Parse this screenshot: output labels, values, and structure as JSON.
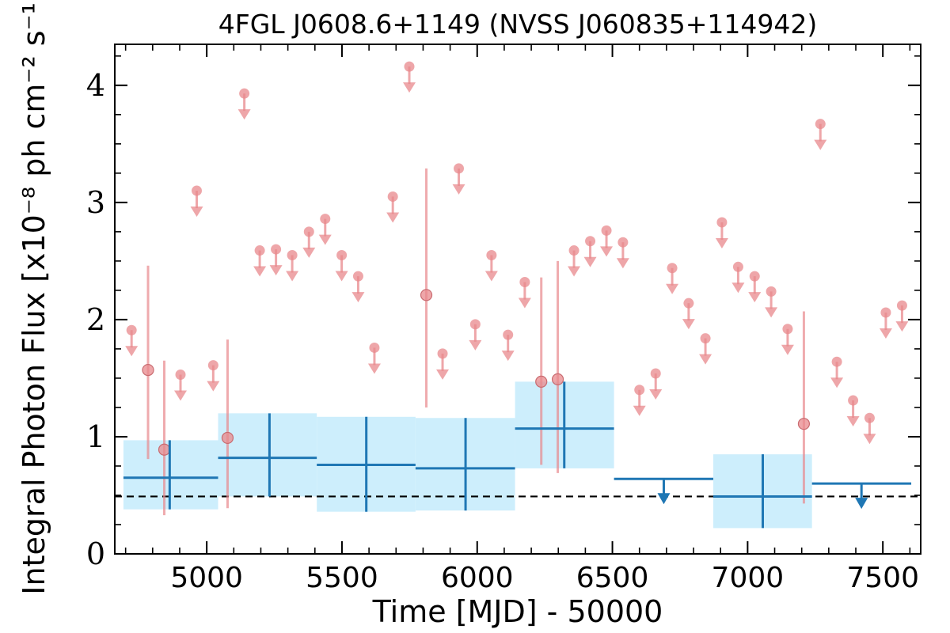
{
  "chart_data": {
    "type": "scatter",
    "title": "4FGL J0608.6+1149 (NVSS J060835+114942)",
    "xlabel": "Time [MJD] - 50000",
    "ylabel": "Integral Photon Flux [x10⁻⁸ ph cm⁻² s⁻¹]",
    "xlim": [
      4660,
      7640
    ],
    "ylim": [
      0,
      4.35
    ],
    "xticks": [
      5000,
      5500,
      6000,
      6500,
      7000,
      7500
    ],
    "yticks": [
      0,
      1,
      2,
      3,
      4
    ],
    "xtick_labels": [
      "5000",
      "5500",
      "6000",
      "6500",
      "7000",
      "7500"
    ],
    "ytick_labels": [
      "0",
      "1",
      "2",
      "3",
      "4"
    ],
    "reference_line": {
      "y": 0.49,
      "style": "dashed",
      "color": "#000000"
    },
    "colors": {
      "fine_bins": "#e8888c",
      "coarse_bins": "#1f77b4",
      "coarse_band": "#cdeefc"
    },
    "series": [
      {
        "binning": "fine",
        "detections": [
          {
            "x": 4783,
            "y": 1.57,
            "y_low": 0.81,
            "y_high": 2.46
          },
          {
            "x": 4843,
            "y": 0.89,
            "y_low": 0.33,
            "y_high": 1.65
          },
          {
            "x": 5077,
            "y": 0.99,
            "y_low": 0.39,
            "y_high": 1.83
          },
          {
            "x": 5812,
            "y": 2.21,
            "y_low": 1.25,
            "y_high": 3.29
          },
          {
            "x": 6237,
            "y": 1.47,
            "y_low": 0.76,
            "y_high": 2.36
          },
          {
            "x": 6298,
            "y": 1.49,
            "y_low": 0.69,
            "y_high": 2.5
          },
          {
            "x": 7208,
            "y": 1.11,
            "y_low": 0.43,
            "y_high": 2.07
          }
        ],
        "upper_limits": [
          {
            "x": 4722,
            "y": 1.91
          },
          {
            "x": 4903,
            "y": 1.53
          },
          {
            "x": 4963,
            "y": 3.1
          },
          {
            "x": 5024,
            "y": 1.61
          },
          {
            "x": 5139,
            "y": 3.93
          },
          {
            "x": 5196,
            "y": 2.59
          },
          {
            "x": 5256,
            "y": 2.6
          },
          {
            "x": 5316,
            "y": 2.55
          },
          {
            "x": 5378,
            "y": 2.75
          },
          {
            "x": 5438,
            "y": 2.86
          },
          {
            "x": 5499,
            "y": 2.55
          },
          {
            "x": 5560,
            "y": 2.37
          },
          {
            "x": 5620,
            "y": 1.76
          },
          {
            "x": 5688,
            "y": 3.05
          },
          {
            "x": 5749,
            "y": 4.16
          },
          {
            "x": 5872,
            "y": 1.71
          },
          {
            "x": 5932,
            "y": 3.29
          },
          {
            "x": 5993,
            "y": 1.96
          },
          {
            "x": 6053,
            "y": 2.55
          },
          {
            "x": 6114,
            "y": 1.87
          },
          {
            "x": 6176,
            "y": 2.32
          },
          {
            "x": 6358,
            "y": 2.59
          },
          {
            "x": 6418,
            "y": 2.67
          },
          {
            "x": 6478,
            "y": 2.76
          },
          {
            "x": 6539,
            "y": 2.66
          },
          {
            "x": 6600,
            "y": 1.4
          },
          {
            "x": 6660,
            "y": 1.54
          },
          {
            "x": 6721,
            "y": 2.44
          },
          {
            "x": 6782,
            "y": 2.14
          },
          {
            "x": 6844,
            "y": 1.84
          },
          {
            "x": 6905,
            "y": 2.83
          },
          {
            "x": 6965,
            "y": 2.45
          },
          {
            "x": 7026,
            "y": 2.37
          },
          {
            "x": 7087,
            "y": 2.24
          },
          {
            "x": 7148,
            "y": 1.92
          },
          {
            "x": 7269,
            "y": 3.67
          },
          {
            "x": 7330,
            "y": 1.64
          },
          {
            "x": 7390,
            "y": 1.31
          },
          {
            "x": 7451,
            "y": 1.16
          },
          {
            "x": 7511,
            "y": 2.06
          },
          {
            "x": 7571,
            "y": 2.12
          }
        ]
      },
      {
        "binning": "coarse",
        "detections": [
          {
            "x": 4863,
            "x_low": 4692,
            "x_high": 5042,
            "y": 0.65,
            "y_low": 0.38,
            "y_high": 0.97
          },
          {
            "x": 5232,
            "x_low": 5042,
            "x_high": 5407,
            "y": 0.82,
            "y_low": 0.49,
            "y_high": 1.2
          },
          {
            "x": 5590,
            "x_low": 5407,
            "x_high": 5772,
            "y": 0.76,
            "y_low": 0.36,
            "y_high": 1.17
          },
          {
            "x": 5957,
            "x_low": 5772,
            "x_high": 6140,
            "y": 0.73,
            "y_low": 0.37,
            "y_high": 1.16
          },
          {
            "x": 6322,
            "x_low": 6140,
            "x_high": 6506,
            "y": 1.07,
            "y_low": 0.73,
            "y_high": 1.47
          },
          {
            "x": 7056,
            "x_low": 6873,
            "x_high": 7238,
            "y": 0.49,
            "y_low": 0.22,
            "y_high": 0.85
          }
        ],
        "upper_limits": [
          {
            "x": 6690,
            "x_low": 6506,
            "x_high": 6873,
            "y": 0.64
          },
          {
            "x": 7421,
            "x_low": 7238,
            "x_high": 7605,
            "y": 0.6
          }
        ]
      }
    ]
  }
}
